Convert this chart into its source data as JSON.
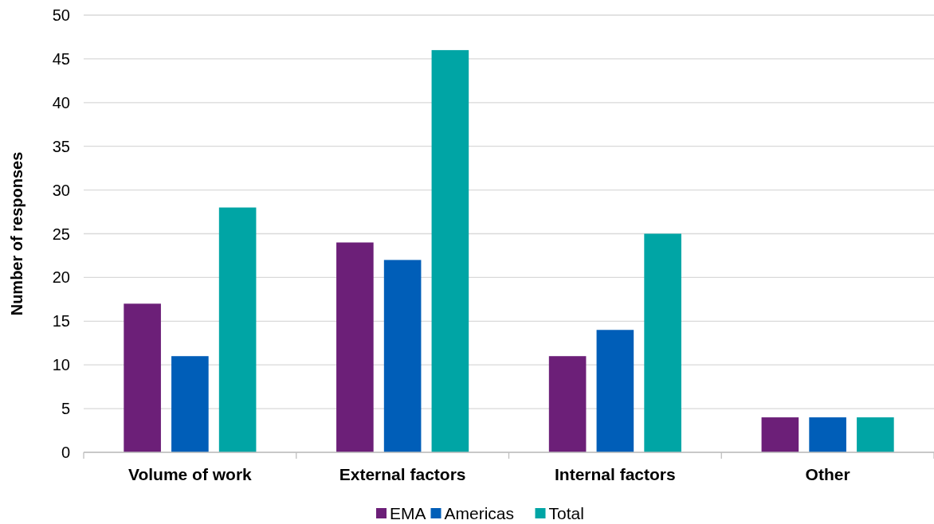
{
  "chart_data": {
    "type": "bar",
    "ylabel": "Number of responses",
    "categories": [
      "Volume of work",
      "External factors",
      "Internal factors",
      "Other"
    ],
    "series": [
      {
        "name": "EMA",
        "color": "#6c1f78",
        "values": [
          17,
          24,
          11,
          4
        ]
      },
      {
        "name": "Americas",
        "color": "#005eb8",
        "values": [
          11,
          22,
          14,
          4
        ]
      },
      {
        "name": "Total",
        "color": "#00a5a5",
        "values": [
          28,
          46,
          25,
          4
        ]
      }
    ],
    "ylim": [
      0,
      50
    ],
    "yticks": [
      0,
      5,
      10,
      15,
      20,
      25,
      30,
      35,
      40,
      45,
      50
    ],
    "grid": "y",
    "legend": "bottom"
  }
}
